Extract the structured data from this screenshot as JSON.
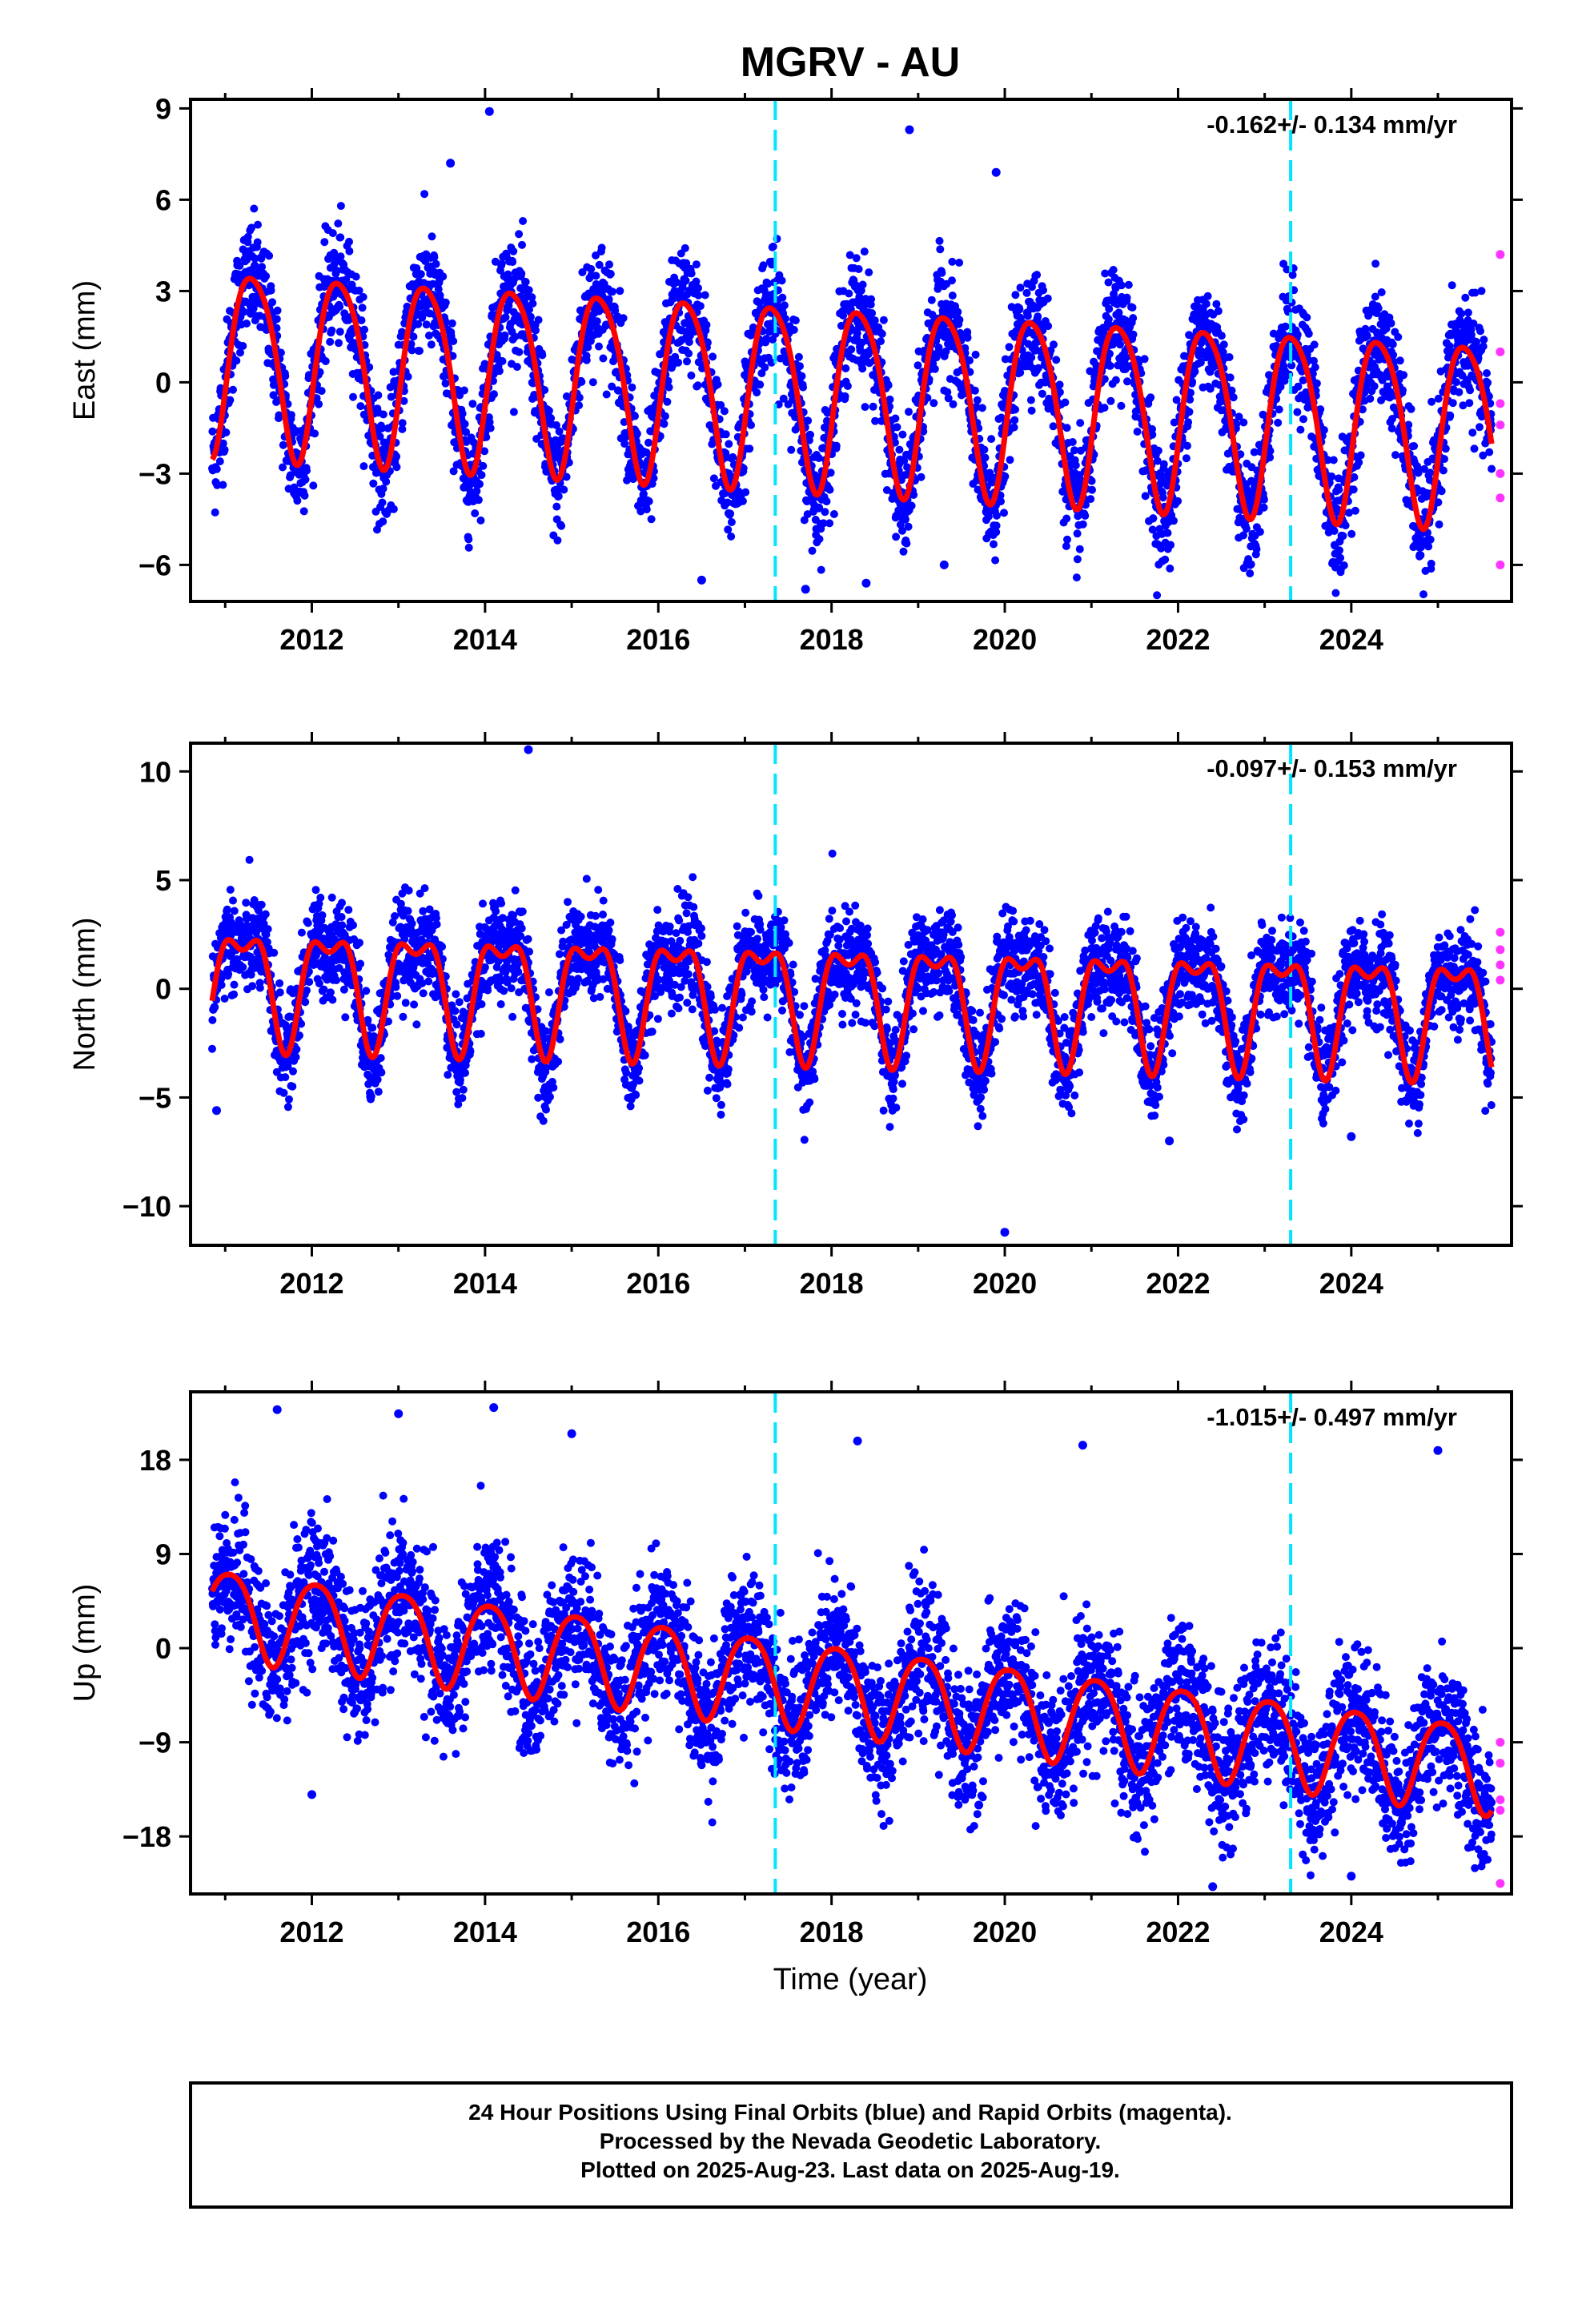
{
  "title": "MGRV - AU",
  "colors": {
    "final": "#0000ff",
    "rapid": "#ff33ff",
    "model": "#ff0000",
    "break": "#00e5ff"
  },
  "chart_data": [
    {
      "type": "scatter",
      "ylabel": "East (mm)",
      "xlabel": "",
      "rate": "-0.162+/- 0.134 mm/yr",
      "xlim": [
        2010.6,
        2025.85
      ],
      "ylim": [
        -7.2,
        9.3
      ],
      "yticks": [
        -6,
        -3,
        0,
        3,
        6,
        9
      ],
      "xticks": [
        2012,
        2014,
        2016,
        2018,
        2020,
        2022,
        2024
      ],
      "offset_epochs": [
        2017.35,
        2023.3
      ],
      "model": {
        "intercept": 1.0,
        "rate": -0.162,
        "annual_amp": 3.0,
        "annual_phase": 0.32,
        "semi_amp": 0.45,
        "semi_phase": 0.1,
        "noise": 0.95,
        "t0": 2010.85,
        "t1": 2025.62
      },
      "outliers": [
        [
          2014.05,
          8.9
        ],
        [
          2018.9,
          8.3
        ],
        [
          2019.9,
          6.9
        ],
        [
          2016.5,
          -6.5
        ],
        [
          2018.4,
          -6.6
        ],
        [
          2019.3,
          -6.0
        ],
        [
          2017.7,
          -6.8
        ],
        [
          2013.6,
          7.2
        ]
      ],
      "rapid": [
        [
          2025.72,
          4.2
        ],
        [
          2025.72,
          1.0
        ],
        [
          2025.72,
          -0.7
        ],
        [
          2025.72,
          -1.4
        ],
        [
          2025.72,
          -3.0
        ],
        [
          2025.72,
          -3.8
        ],
        [
          2025.72,
          -6.0
        ]
      ]
    },
    {
      "type": "scatter",
      "ylabel": "North (mm)",
      "xlabel": "",
      "rate": "-0.097+/- 0.153 mm/yr",
      "xlim": [
        2010.6,
        2025.85
      ],
      "ylim": [
        -11.8,
        11.3
      ],
      "yticks": [
        -10,
        -5,
        0,
        5,
        10
      ],
      "xticks": [
        2012,
        2014,
        2016,
        2018,
        2020,
        2022,
        2024
      ],
      "offset_epochs": [
        2017.35,
        2023.3
      ],
      "model": {
        "intercept": 0.6,
        "rate": -0.097,
        "annual_amp": 2.4,
        "annual_phase": 0.2,
        "semi_amp": 1.1,
        "semi_phase": 0.45,
        "noise": 1.1,
        "t0": 2010.85,
        "t1": 2025.62
      },
      "outliers": [
        [
          2020.0,
          -11.2
        ],
        [
          2014.5,
          11.0
        ],
        [
          2021.9,
          -7.0
        ],
        [
          2024.0,
          -6.8
        ],
        [
          2010.9,
          -5.6
        ]
      ],
      "rapid": [
        [
          2025.72,
          2.6
        ],
        [
          2025.72,
          1.8
        ],
        [
          2025.72,
          1.1
        ],
        [
          2025.72,
          0.4
        ]
      ]
    },
    {
      "type": "scatter",
      "ylabel": "Up (mm)",
      "xlabel": "Time (year)",
      "rate": "-1.015+/- 0.497 mm/yr",
      "xlim": [
        2010.6,
        2025.85
      ],
      "ylim": [
        -23.5,
        24.5
      ],
      "yticks": [
        -18,
        -9,
        0,
        9,
        18
      ],
      "xticks": [
        2012,
        2014,
        2016,
        2018,
        2020,
        2022,
        2024
      ],
      "offset_epochs": [
        2017.35,
        2023.3
      ],
      "model": {
        "intercept": 4.5,
        "rate": -1.015,
        "annual_amp": 4.2,
        "annual_phase": 0.05,
        "semi_amp": 0.6,
        "semi_phase": 0.3,
        "noise": 3.3,
        "t0": 2010.85,
        "t1": 2025.62
      },
      "outliers": [
        [
          2011.6,
          22.8
        ],
        [
          2013.0,
          22.4
        ],
        [
          2014.1,
          23.0
        ],
        [
          2015.0,
          20.5
        ],
        [
          2018.3,
          19.8
        ],
        [
          2020.9,
          19.4
        ],
        [
          2025.0,
          18.9
        ],
        [
          2022.4,
          -22.8
        ],
        [
          2024.0,
          -21.8
        ],
        [
          2012.0,
          -14.0
        ],
        [
          2019.7,
          -15.0
        ]
      ],
      "rapid": [
        [
          2025.72,
          -9.0
        ],
        [
          2025.72,
          -11.0
        ],
        [
          2025.72,
          -14.5
        ],
        [
          2025.72,
          -15.5
        ],
        [
          2025.72,
          -22.5
        ]
      ]
    }
  ],
  "footer": {
    "line1": "24 Hour Positions Using Final Orbits (blue) and Rapid Orbits (magenta).",
    "line2": "Processed by the Nevada Geodetic Laboratory.",
    "line3": "Plotted on 2025-Aug-23. Last data on 2025-Aug-19."
  }
}
